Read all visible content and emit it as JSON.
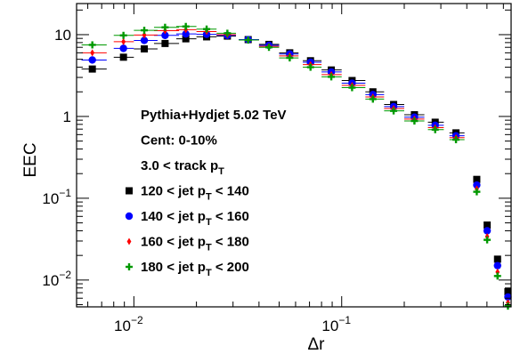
{
  "chart_data": {
    "type": "scatter",
    "xlabel": "Δr",
    "ylabel": "EEC",
    "x_scale": "log",
    "y_scale": "log",
    "xlim": [
      0.0053,
      0.66
    ],
    "ylim": [
      0.0047,
      24
    ],
    "x_ticks": [
      {
        "base": "10",
        "exp": "−2",
        "value": 0.01
      },
      {
        "base": "10",
        "exp": "−1",
        "value": 0.1
      }
    ],
    "y_ticks": [
      {
        "base": "10",
        "exp": "−2",
        "value": 0.01
      },
      {
        "base": "10",
        "exp": "−1",
        "value": 0.1
      },
      {
        "base": "1",
        "exp": "",
        "value": 1
      },
      {
        "base": "10",
        "exp": "",
        "value": 10
      }
    ],
    "annotations": [
      {
        "main": "Pythia+Hydjet 5.02 TeV"
      },
      {
        "main": "Cent: 0-10%"
      },
      {
        "main": "3.0 < track p",
        "sub": "T",
        "after": ""
      }
    ],
    "x": [
      0.00631,
      0.00891,
      0.01122,
      0.01413,
      0.01778,
      0.02239,
      0.02818,
      0.03548,
      0.04467,
      0.05623,
      0.07079,
      0.08913,
      0.1122,
      0.1413,
      0.1778,
      0.2239,
      0.2818,
      0.3548,
      0.4467,
      0.5012,
      0.5623,
      0.631
    ],
    "x_err_lo": [
      0.00071,
      0.00091,
      0.00122,
      0.00163,
      0.00178,
      0.00239,
      0.00318,
      0.00348,
      0.00467,
      0.00623,
      0.00579,
      0.00913,
      0.0122,
      0.0113,
      0.0178,
      0.0239,
      0.0218,
      0.0248,
      0.0067,
      0.0062,
      0.0073,
      0.007
    ],
    "x_err_hi": [
      0.00109,
      0.00109,
      0.00178,
      0.00237,
      0.00222,
      0.00261,
      0.00282,
      0.00452,
      0.00533,
      0.00577,
      0.00921,
      0.01087,
      0.0178,
      0.0187,
      0.0222,
      0.0261,
      0.0282,
      0.0352,
      0.0083,
      0.0088,
      0.0077,
      0.008
    ],
    "series": [
      {
        "name": "120 < jet p",
        "name_sub": "T",
        "name_after": " < 140",
        "color": "#000000",
        "marker": "square",
        "values": [
          3.8,
          5.3,
          6.7,
          7.8,
          8.9,
          9.4,
          9.6,
          8.7,
          7.6,
          6.0,
          4.8,
          3.7,
          2.75,
          2.0,
          1.4,
          1.05,
          0.85,
          0.63,
          0.17,
          0.047,
          0.018,
          0.0072
        ]
      },
      {
        "name": "140 < jet p",
        "name_sub": "T",
        "name_after": " < 160",
        "color": "#0000ff",
        "marker": "circle",
        "values": [
          4.9,
          6.8,
          8.5,
          9.8,
          10.2,
          10.1,
          9.8,
          8.7,
          7.4,
          5.8,
          4.6,
          3.5,
          2.55,
          1.85,
          1.32,
          0.98,
          0.78,
          0.58,
          0.145,
          0.04,
          0.015,
          0.0062
        ]
      },
      {
        "name": "160 < jet p",
        "name_sub": "T",
        "name_after": " < 180",
        "color": "#ff0000",
        "marker": "diamond",
        "values": [
          6.0,
          8.2,
          9.9,
          11.2,
          11.5,
          10.9,
          10.0,
          8.6,
          7.2,
          5.5,
          4.3,
          3.25,
          2.4,
          1.73,
          1.25,
          0.93,
          0.73,
          0.55,
          0.13,
          0.034,
          0.0125,
          0.0053
        ]
      },
      {
        "name": "180 < jet p",
        "name_sub": "T",
        "name_after": " < 200",
        "color": "#009900",
        "marker": "cross",
        "values": [
          7.5,
          9.8,
          11.3,
          12.3,
          12.6,
          11.7,
          10.4,
          8.6,
          7.0,
          5.2,
          4.0,
          3.05,
          2.25,
          1.63,
          1.17,
          0.88,
          0.69,
          0.52,
          0.12,
          0.031,
          0.0112,
          0.0048
        ]
      }
    ]
  }
}
